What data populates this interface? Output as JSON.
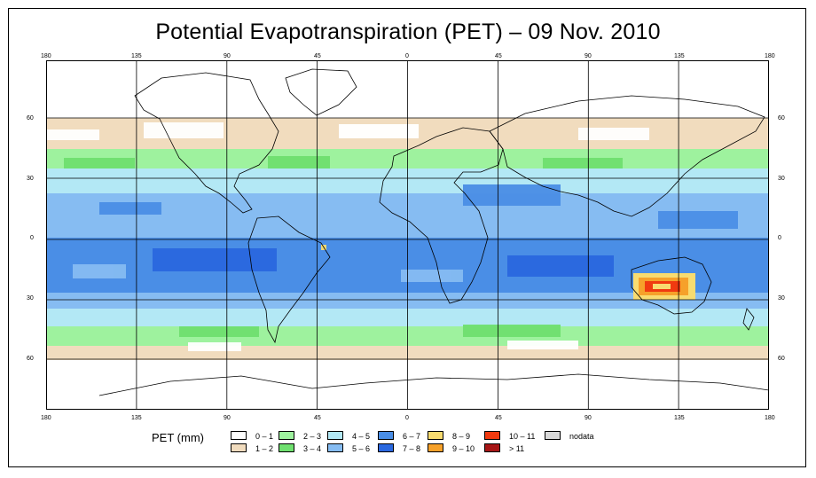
{
  "title": "Potential Evapotranspiration (PET) – 09 Nov. 2010",
  "axes": {
    "top_lon_labels": [
      "180",
      "135",
      "90",
      "45",
      "0",
      "45",
      "90",
      "135",
      "180"
    ],
    "bottom_lon_labels": [
      "180",
      "135",
      "90",
      "45",
      "0",
      "45",
      "90",
      "135",
      "180"
    ],
    "lat_labels": [
      "60",
      "30",
      "0",
      "30",
      "60"
    ]
  },
  "legend": {
    "title": "PET (mm)",
    "items": [
      {
        "label": "0 – 1",
        "color": "#ffffff"
      },
      {
        "label": "1 – 2",
        "color": "#f1dcbe"
      },
      {
        "label": "2 – 3",
        "color": "#9ef29e"
      },
      {
        "label": "3 – 4",
        "color": "#6fe06f"
      },
      {
        "label": "4 – 5",
        "color": "#b3e8f5"
      },
      {
        "label": "5 – 6",
        "color": "#86bcf2"
      },
      {
        "label": "6 – 7",
        "color": "#4a8ee6"
      },
      {
        "label": "7 – 8",
        "color": "#2a68df"
      },
      {
        "label": "8 – 9",
        "color": "#f8dc70"
      },
      {
        "label": "9 – 10",
        "color": "#f6a12a"
      },
      {
        "label": "10 – 11",
        "color": "#f03a10"
      },
      {
        "label": "> 11",
        "color": "#a61616"
      },
      {
        "label": "nodata",
        "color": "#d9d9d9"
      }
    ]
  }
}
